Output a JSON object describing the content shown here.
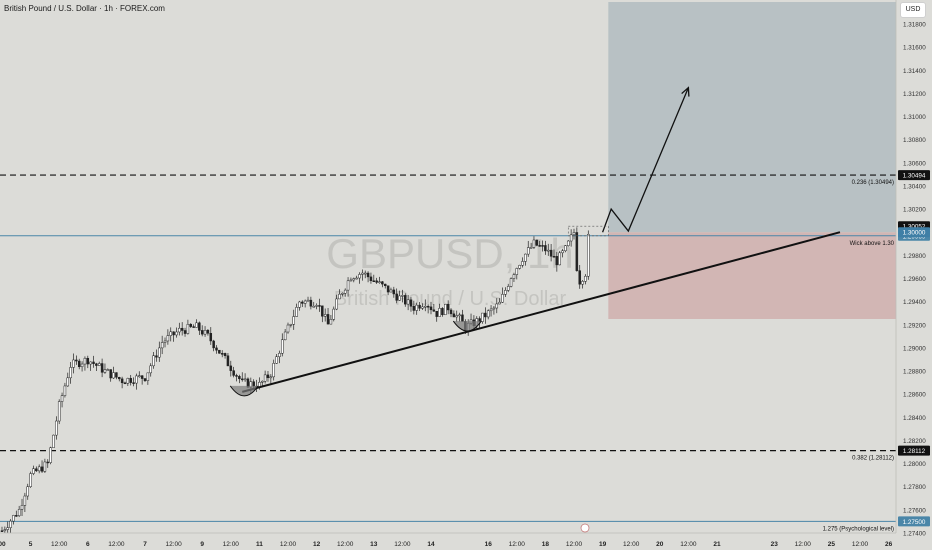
{
  "header": {
    "title": "British Pound / U.S. Dollar · 1h · FOREX.com",
    "currency_button": "USD"
  },
  "watermark": {
    "symbol": "GBPUSD, 1h",
    "name": "British Pound / U.S. Dollar"
  },
  "colors": {
    "background": "#dcdcd8",
    "profit_zone": "#b8c1c4",
    "loss_zone": "#d2b6b4",
    "support_line": "#111111",
    "level_line": "#4a86a8"
  },
  "chart_data": {
    "type": "candlestick",
    "ylim": [
      1.274,
      1.3199
    ],
    "y_ticks": [
      "1.31800",
      "1.31600",
      "1.31400",
      "1.31200",
      "1.31000",
      "1.30800",
      "1.30600",
      "1.30400",
      "1.30200",
      "1.30000",
      "1.29800",
      "1.29600",
      "1.29400",
      "1.29200",
      "1.29000",
      "1.28800",
      "1.28600",
      "1.28400",
      "1.28200",
      "1.28000",
      "1.27800",
      "1.27600",
      "1.27400"
    ],
    "x_ticks": [
      {
        "label": "00",
        "bar": 0
      },
      {
        "label": "5",
        "bar": 10
      },
      {
        "label": "12:00",
        "bar": 20
      },
      {
        "label": "6",
        "bar": 30
      },
      {
        "label": "12:00",
        "bar": 40
      },
      {
        "label": "7",
        "bar": 50
      },
      {
        "label": "12:00",
        "bar": 60
      },
      {
        "label": "9",
        "bar": 70
      },
      {
        "label": "12:00",
        "bar": 80
      },
      {
        "label": "11",
        "bar": 90
      },
      {
        "label": "12:00",
        "bar": 100
      },
      {
        "label": "12",
        "bar": 110
      },
      {
        "label": "12:00",
        "bar": 120
      },
      {
        "label": "13",
        "bar": 130
      },
      {
        "label": "12:00",
        "bar": 140
      },
      {
        "label": "14",
        "bar": 150
      },
      {
        "label": "16",
        "bar": 170
      },
      {
        "label": "12:00",
        "bar": 180
      },
      {
        "label": "18",
        "bar": 190
      },
      {
        "label": "12:00",
        "bar": 200
      },
      {
        "label": "19",
        "bar": 210
      },
      {
        "label": "12:00",
        "bar": 220
      },
      {
        "label": "20",
        "bar": 230
      },
      {
        "label": "12:00",
        "bar": 240
      },
      {
        "label": "21",
        "bar": 250
      },
      {
        "label": "23",
        "bar": 270
      },
      {
        "label": "12:00",
        "bar": 280
      },
      {
        "label": "25",
        "bar": 290
      },
      {
        "label": "12:00",
        "bar": 300
      },
      {
        "label": "26",
        "bar": 310
      }
    ],
    "price_path": [
      [
        0,
        1.2742
      ],
      [
        6,
        1.276
      ],
      [
        10,
        1.279
      ],
      [
        16,
        1.28
      ],
      [
        20,
        1.285
      ],
      [
        24,
        1.2885
      ],
      [
        30,
        1.289
      ],
      [
        36,
        1.288
      ],
      [
        42,
        1.2872
      ],
      [
        50,
        1.2875
      ],
      [
        56,
        1.2905
      ],
      [
        62,
        1.2915
      ],
      [
        68,
        1.2918
      ],
      [
        72,
        1.291
      ],
      [
        78,
        1.289
      ],
      [
        84,
        1.287
      ],
      [
        90,
        1.2868
      ],
      [
        94,
        1.2878
      ],
      [
        98,
        1.2905
      ],
      [
        104,
        1.294
      ],
      [
        110,
        1.294
      ],
      [
        114,
        1.292
      ],
      [
        118,
        1.2945
      ],
      [
        122,
        1.2962
      ],
      [
        126,
        1.2965
      ],
      [
        132,
        1.2955
      ],
      [
        138,
        1.2945
      ],
      [
        144,
        1.2935
      ],
      [
        148,
        1.294
      ],
      [
        152,
        1.293
      ],
      [
        156,
        1.2935
      ],
      [
        160,
        1.2925
      ],
      [
        162,
        1.2918
      ],
      [
        166,
        1.2923
      ],
      [
        170,
        1.293
      ],
      [
        174,
        1.2938
      ],
      [
        178,
        1.2962
      ],
      [
        182,
        1.2978
      ],
      [
        186,
        1.299
      ],
      [
        190,
        1.2985
      ],
      [
        194,
        1.2975
      ],
      [
        197,
        1.2985
      ],
      [
        199,
        1.2995
      ],
      [
        200,
        1.3
      ],
      [
        201,
        1.297
      ],
      [
        202,
        1.2958
      ],
      [
        204,
        1.2965
      ],
      [
        205,
        1.2995
      ]
    ],
    "levels": [
      {
        "price": 1.30494,
        "label": "0.236 (1.30494)",
        "badge": "1.30494",
        "style": "dashed"
      },
      {
        "price": 1.29969,
        "label": "Wick above 1.30",
        "badge": "1.29969",
        "style": "solid"
      },
      {
        "price": 1.28112,
        "label": "0.382 (1.28112)",
        "badge": "1.28112",
        "style": "dashed"
      },
      {
        "price": 1.275,
        "label": "1.275 (Psychological level)",
        "badge": "1.27500",
        "style": "solid"
      }
    ],
    "price_badges": [
      {
        "price": 1.30052,
        "text": "1.30052",
        "color": "#111111"
      },
      {
        "price": 1.3,
        "text": "1.30000",
        "color": "#3f7fa6"
      }
    ],
    "position": {
      "entry": 1.3,
      "target": 1.3199,
      "stop": 1.2925,
      "start_bar": 212,
      "end_bar": 318
    },
    "support_line": {
      "from": [
        84,
        1.2862
      ],
      "to": [
        293,
        1.3
      ]
    },
    "projection": [
      [
        210,
        1.3
      ],
      [
        213,
        1.302
      ],
      [
        219,
        1.3001
      ],
      [
        240,
        1.3125
      ]
    ],
    "annotations": [
      "0.236 (1.30494)",
      "Wick above 1.30",
      "0.382 (1.28112)",
      "1.275 (Psychological level)"
    ]
  }
}
